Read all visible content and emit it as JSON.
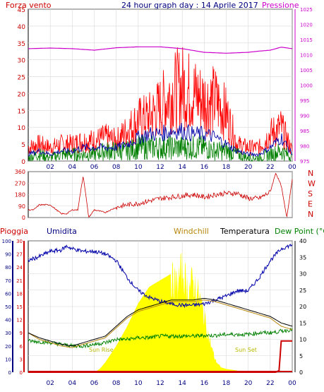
{
  "page": {
    "title": "24 hour graph day : 14 Aprile 2017"
  },
  "colors": {
    "wind": "#cc0000",
    "gust": "#ff0000",
    "avg_wind": "#0000aa",
    "green_wind": "#008000",
    "pressure": "#cc00cc",
    "direction": "#cc0000",
    "humidity": "#0000aa",
    "windchill": "#b8860b",
    "temperature": "#000000",
    "dew_point": "#008000",
    "solar": "#ffff00",
    "rain": "#cc0000"
  },
  "chart_data": [
    {
      "type": "line",
      "title": "24 hour graph day : 14 Aprile 2017",
      "ylabel_left": "Forza vento",
      "ylabel_right": "Pressione",
      "x_ticks": [
        "02",
        "04",
        "06",
        "08",
        "10",
        "12",
        "14",
        "16",
        "18",
        "20",
        "22",
        "00"
      ],
      "y_left_ticks": [
        0,
        5,
        10,
        15,
        20,
        25,
        30,
        35,
        40,
        45
      ],
      "y_right_ticks": [
        975,
        980,
        985,
        990,
        995,
        1000,
        1005,
        1010,
        1015,
        1020,
        1025
      ],
      "y_left_range": [
        0,
        45
      ],
      "y_right_range": [
        975,
        1025
      ],
      "series": [
        {
          "key": "gust",
          "hours": [
            0,
            1,
            2,
            3,
            4,
            5,
            6,
            7,
            8,
            9,
            10,
            11,
            12,
            13,
            14,
            15,
            16,
            17,
            18,
            19,
            20,
            21,
            22,
            23,
            24
          ],
          "values": [
            4,
            5,
            4,
            5,
            5,
            6,
            6,
            7,
            6,
            9,
            12,
            13,
            16,
            20,
            22,
            20,
            18,
            18,
            14,
            5,
            4,
            4,
            8,
            10,
            3
          ]
        },
        {
          "key": "avg_wind",
          "hours": [
            0,
            1,
            2,
            3,
            4,
            5,
            6,
            7,
            8,
            9,
            10,
            11,
            12,
            13,
            14,
            15,
            16,
            17,
            18,
            19,
            20,
            21,
            22,
            23,
            24
          ],
          "values": [
            2,
            3,
            2,
            3,
            3,
            4,
            4,
            4,
            4,
            5,
            7,
            8,
            8,
            9,
            9,
            8,
            8,
            7,
            5,
            3,
            2,
            2,
            4,
            7,
            2
          ]
        },
        {
          "key": "green_wind",
          "hours": [
            0,
            1,
            2,
            3,
            4,
            5,
            6,
            7,
            8,
            9,
            10,
            11,
            12,
            13,
            14,
            15,
            16,
            17,
            18,
            19,
            20,
            21,
            22,
            23,
            24
          ],
          "values": [
            1,
            2,
            1,
            2,
            2,
            2,
            2,
            3,
            3,
            3,
            4,
            4,
            4,
            4,
            4,
            4,
            4,
            3,
            3,
            2,
            1,
            1,
            2,
            3,
            1
          ]
        },
        {
          "key": "pressure",
          "hours": [
            0,
            2,
            4,
            6,
            8,
            10,
            12,
            14,
            16,
            18,
            20,
            21,
            22,
            23,
            24
          ],
          "values": [
            1012,
            1012.2,
            1012,
            1011.5,
            1012.3,
            1012.6,
            1012.6,
            1012,
            1010.8,
            1010.5,
            1010.8,
            1011.2,
            1011.5,
            1012.5,
            1012
          ]
        }
      ]
    },
    {
      "type": "line",
      "ylabel_right": [
        "N",
        "W",
        "S",
        "E",
        "N"
      ],
      "y_left_ticks": [
        0,
        90,
        180,
        270,
        360
      ],
      "y_range": [
        0,
        360
      ],
      "series": [
        {
          "key": "direction",
          "hours": [
            0,
            0.5,
            1,
            2,
            3,
            3.5,
            4,
            4.5,
            5,
            5.5,
            6,
            7,
            8,
            9,
            10,
            11,
            12,
            13,
            14,
            15,
            16,
            17,
            18,
            19,
            20,
            21,
            22,
            22.5,
            23,
            23.5,
            24
          ],
          "values": [
            60,
            60,
            100,
            100,
            30,
            30,
            60,
            60,
            330,
            0,
            60,
            40,
            80,
            100,
            110,
            130,
            150,
            160,
            170,
            180,
            160,
            180,
            190,
            190,
            150,
            150,
            200,
            350,
            250,
            0,
            300
          ]
        }
      ]
    },
    {
      "type": "line",
      "labels": {
        "rain": "Pioggia",
        "humidity": "Umidita",
        "windchill": "Windchill",
        "temperature": "Temperatura",
        "dew_point": "Dew Point (°C"
      },
      "annotations": [
        "Sun Rise",
        "Sun Set"
      ],
      "x_ticks": [
        "02",
        "04",
        "06",
        "08",
        "10",
        "12",
        "14",
        "16",
        "18",
        "20",
        "22",
        "00"
      ],
      "y_humidity_ticks": [
        0,
        10,
        20,
        30,
        40,
        50,
        60,
        70,
        80,
        90,
        100
      ],
      "y_rain_ticks": [
        0,
        3,
        6,
        9,
        12,
        15,
        18,
        21,
        24,
        27,
        30
      ],
      "y_temp_ticks": [
        0,
        5,
        10,
        15,
        20,
        25,
        30,
        35,
        40
      ],
      "y_temp_range": [
        0,
        40
      ],
      "series": [
        {
          "key": "humidity",
          "hours": [
            0,
            1,
            2,
            3,
            3.5,
            4,
            5,
            6,
            7,
            8,
            9,
            10,
            11,
            12,
            13,
            14,
            15,
            16,
            17,
            18,
            19,
            20,
            21,
            22,
            23,
            24
          ],
          "values": [
            85,
            88,
            92,
            93,
            96,
            94,
            92,
            92,
            90,
            85,
            72,
            62,
            57,
            54,
            52,
            51,
            51,
            52,
            55,
            58,
            62,
            62,
            72,
            85,
            94,
            97
          ]
        },
        {
          "key": "temperature",
          "hours": [
            0,
            1,
            2,
            3,
            4,
            5,
            6,
            7,
            8,
            9,
            10,
            11,
            12,
            13,
            14,
            15,
            16,
            17,
            18,
            19,
            20,
            21,
            22,
            23,
            24
          ],
          "values": [
            12,
            10.5,
            9.5,
            8.5,
            8,
            9,
            10,
            11,
            14,
            17,
            19,
            20,
            21,
            22,
            22,
            22,
            22.5,
            22,
            21,
            20,
            19,
            18,
            17,
            15,
            14
          ]
        },
        {
          "key": "windchill",
          "hours": [
            0,
            1,
            2,
            3,
            4,
            5,
            6,
            7,
            8,
            9,
            10,
            11,
            12,
            13,
            14,
            15,
            16,
            17,
            18,
            19,
            20,
            21,
            22,
            23,
            24
          ],
          "values": [
            12,
            10,
            9,
            8,
            7.5,
            8.5,
            9.5,
            10.5,
            13.5,
            16.5,
            18.5,
            19.5,
            20.5,
            21.5,
            21.5,
            21.5,
            22,
            21.5,
            20.5,
            19.5,
            18.5,
            17.5,
            16.5,
            14,
            13
          ]
        },
        {
          "key": "dew_point",
          "hours": [
            0,
            1,
            2,
            3,
            4,
            5,
            6,
            7,
            8,
            9,
            10,
            11,
            12,
            13,
            14,
            15,
            16,
            17,
            18,
            19,
            20,
            21,
            22,
            23,
            24
          ],
          "values": [
            9.5,
            9.3,
            9,
            8.5,
            8,
            8,
            8.5,
            9,
            10,
            10,
            10.5,
            10.5,
            11,
            11,
            11,
            11,
            11.2,
            11.2,
            11.5,
            11.5,
            11.5,
            12,
            12,
            12.5,
            13
          ]
        },
        {
          "key": "solar",
          "hours": [
            0,
            6,
            6.5,
            7,
            8,
            9,
            10,
            11,
            12,
            12.5,
            13,
            13.5,
            14,
            14.5,
            15,
            15.5,
            16,
            16.5,
            17,
            17.5,
            18,
            19,
            20,
            24
          ],
          "values": [
            0,
            0,
            1,
            3,
            8,
            14,
            21,
            26,
            28,
            29,
            30,
            28,
            33,
            27,
            29,
            25,
            18,
            10,
            4,
            1.5,
            1,
            0.5,
            0,
            0
          ]
        },
        {
          "key": "rain",
          "hours": [
            0,
            22.5,
            22.8,
            23,
            24
          ],
          "values": [
            0,
            0,
            0.5,
            9.5,
            9.5
          ]
        }
      ]
    }
  ]
}
